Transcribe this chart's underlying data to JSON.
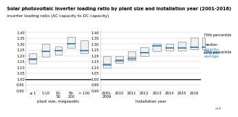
{
  "title": "Solar photovoltaic inverter loading ratio by plant size and installation year (2001-2016)",
  "subtitle": "inverter loading ratio (AC capacity to DC capacity)",
  "ylim": [
    0.9,
    1.42
  ],
  "yticks": [
    0.9,
    0.95,
    1.0,
    1.05,
    1.1,
    1.15,
    1.2,
    1.25,
    1.3,
    1.35,
    1.4
  ],
  "size_categories": [
    "≤ 1",
    "1-10",
    "10-\n50",
    "50-\n100",
    "> 100"
  ],
  "size_q25": [
    1.13,
    1.19,
    1.21,
    1.27,
    1.22
  ],
  "size_median": [
    1.18,
    1.24,
    1.25,
    1.31,
    1.25
  ],
  "size_q75": [
    1.22,
    1.3,
    1.28,
    1.36,
    1.33
  ],
  "size_cwa": [
    1.17,
    1.24,
    1.245,
    1.305,
    1.245
  ],
  "year_categories": [
    "2001-\n2009",
    "2010",
    "2011",
    "2012",
    "2013",
    "2014",
    "2015",
    "2016"
  ],
  "year_q25": [
    1.1,
    1.14,
    1.16,
    1.2,
    1.24,
    1.245,
    1.245,
    1.255
  ],
  "year_median": [
    1.13,
    1.17,
    1.19,
    1.235,
    1.285,
    1.265,
    1.265,
    1.275
  ],
  "year_q75": [
    1.2,
    1.2,
    1.24,
    1.275,
    1.305,
    1.305,
    1.32,
    1.355
  ],
  "year_cwa": [
    1.12,
    1.155,
    1.175,
    1.225,
    1.285,
    1.265,
    1.265,
    1.275
  ],
  "box_facecolor": "#f0f0f0",
  "box_edgecolor": "#888888",
  "median_color": "#888888",
  "cwa_color": "#1a7abf",
  "hline_color": "#000000",
  "title_fontsize": 4.8,
  "subtitle_fontsize": 4.2,
  "tick_fontsize": 3.8,
  "label_fontsize": 4.0,
  "legend_fontsize": 3.8,
  "xlabel_size": "plant size, megawatts",
  "xlabel_year": "installation year",
  "legend_labels": [
    "75th percentile",
    "median",
    "capacity-\nweighted\naverage",
    "25th percentile"
  ],
  "eia_text": "eia"
}
